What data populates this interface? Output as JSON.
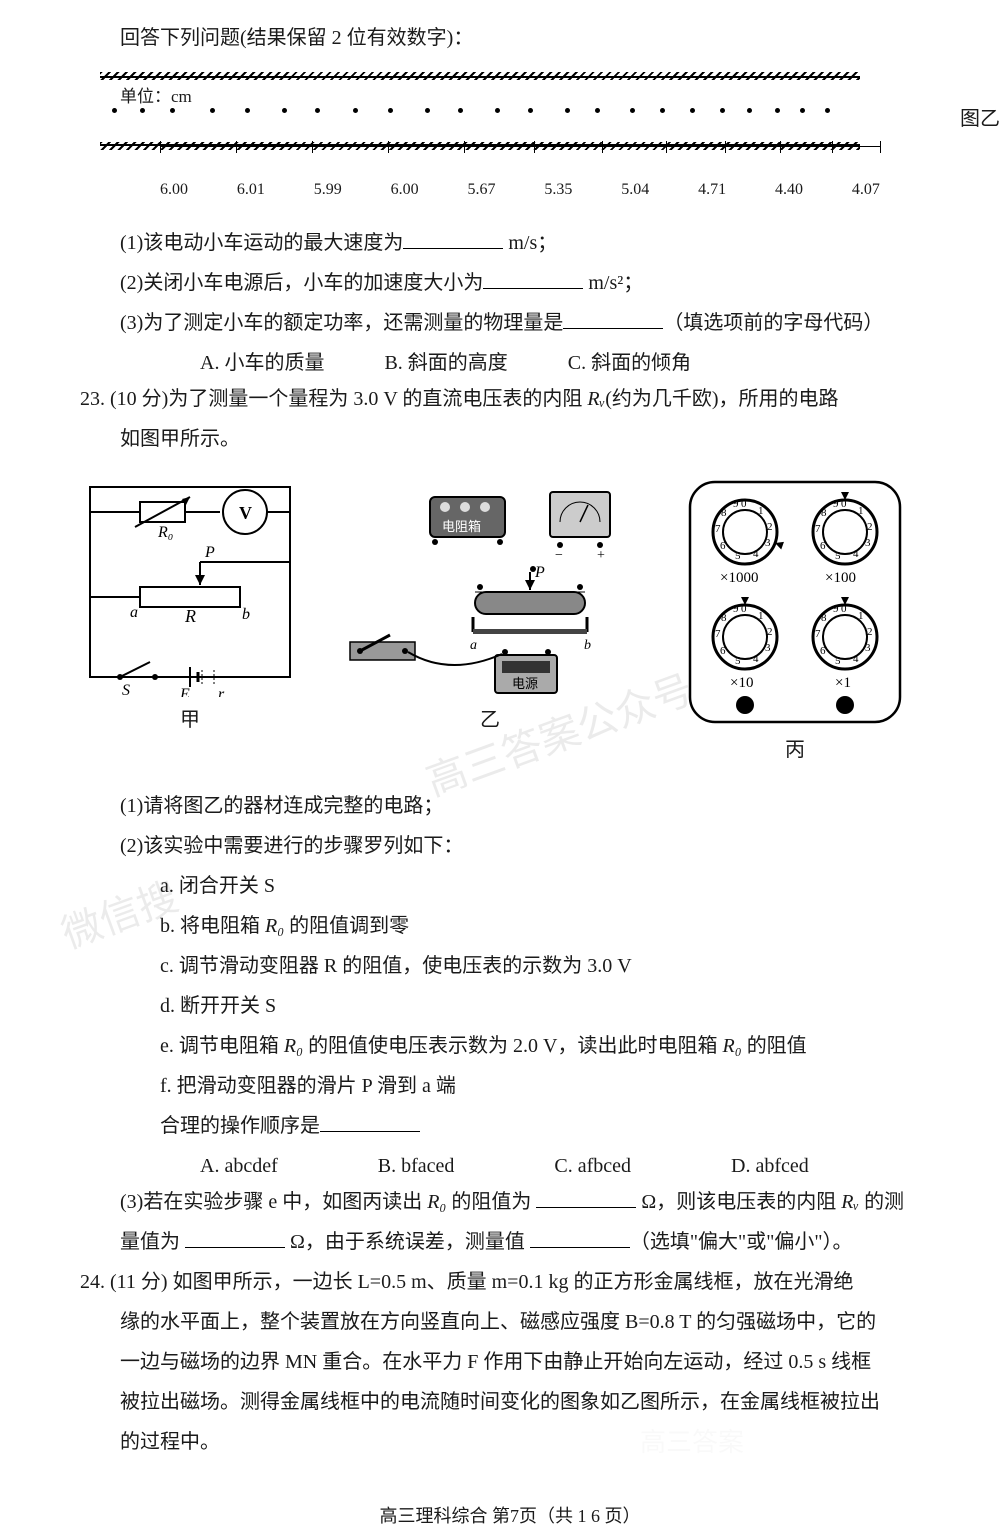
{
  "header_line": "回答下列问题(结果保留 2 位有效数字)：",
  "tape": {
    "unit_label": "单位：cm",
    "values": [
      "6.00",
      "6.01",
      "5.99",
      "6.00",
      "5.67",
      "5.35",
      "5.04",
      "4.71",
      "4.40",
      "4.07"
    ],
    "right_label": "图乙",
    "dot_positions": [
      12,
      40,
      70,
      110,
      145,
      182,
      215,
      253,
      288,
      325,
      358,
      395,
      428,
      465,
      495,
      530,
      560,
      590,
      620,
      647,
      675,
      700,
      725
    ],
    "tick_positions": [
      0,
      76,
      152,
      228,
      304,
      374,
      442,
      506,
      565,
      620,
      672,
      720
    ]
  },
  "q1_1": "(1)该电动小车运动的最大速度为",
  "q1_1_unit": " m/s；",
  "q1_2": "(2)关闭小车电源后，小车的加速度大小为",
  "q1_2_unit": " m/s²；",
  "q1_3": "(3)为了测定小车的额定功率，还需测量的物理量是",
  "q1_3_unit": "（填选项前的字母代码）",
  "q1_options": {
    "a": "A. 小车的质量",
    "b": "B. 斜面的高度",
    "c": "C. 斜面的倾角"
  },
  "q23_num": "23. ",
  "q23_text1": "(10 分)为了测量一个量程为 3.0 V 的直流电压表的内阻 ",
  "q23_rv": "Rᵥ",
  "q23_text2": "(约为几千欧)，所用的电路",
  "q23_text3": "如图甲所示。",
  "circuit_labels": {
    "jia": "甲",
    "yi": "乙",
    "bing": "丙"
  },
  "circuit_jia": {
    "R0": "R₀",
    "V": "V",
    "P": "P",
    "a": "a",
    "b": "b",
    "R": "R",
    "S": "S",
    "E": "E",
    "r": "r"
  },
  "circuit_yi": {
    "box": "电阻箱",
    "power": "电源",
    "P": "P",
    "a": "a",
    "b": "b"
  },
  "circuit_bing": {
    "m1000": "×1000",
    "m100": "×100",
    "m10": "×10",
    "m1": "×1"
  },
  "q23_1": "(1)请将图乙的器材连成完整的电路；",
  "q23_2": "(2)该实验中需要进行的步骤罗列如下：",
  "steps": {
    "a": "a. 闭合开关 S",
    "b_1": "b. 将电阻箱 ",
    "b_r0": "R₀",
    "b_2": " 的阻值调到零",
    "c": "c. 调节滑动变阻器 R 的阻值，使电压表的示数为 3.0 V",
    "d": "d. 断开开关 S",
    "e_1": "e. 调节电阻箱 ",
    "e_2": " 的阻值使电压表示数为 2.0 V，读出此时电阻箱 ",
    "e_3": " 的阻值",
    "f": "f. 把滑动变阻器的滑片 P 滑到 a 端"
  },
  "order_label": "合理的操作顺序是",
  "order_options": {
    "a": "A. abcdef",
    "b": "B. bfaced",
    "c": "C. afbced",
    "d": "D. abfced"
  },
  "q23_3_1": "(3)若在实验步骤 e 中，如图丙读出 ",
  "q23_3_2": " 的阻值为 ",
  "q23_3_unit1": " Ω，则该电压表的内阻 ",
  "q23_3_3": " 的测",
  "q23_3_4": "量值为 ",
  "q23_3_unit2": " Ω，由于系统误差，测量值 ",
  "q23_3_5": "（选填\"偏大\"或\"偏小\"）。",
  "q24_num": "24. ",
  "q24_l1": "(11 分) 如图甲所示，一边长 L=0.5 m、质量 m=0.1 kg 的正方形金属线框，放在光滑绝",
  "q24_l2": "缘的水平面上，整个装置放在方向竖直向上、磁感应强度 B=0.8 T 的匀强磁场中，它的",
  "q24_l3": "一边与磁场的边界 MN 重合。在水平力 F 作用下由静止开始向左运动，经过 0.5 s 线框",
  "q24_l4": "被拉出磁场。测得金属线框中的电流随时间变化的图象如乙图所示，在金属线框被拉出",
  "q24_l5": "的过程中。",
  "footer": "高三理科综合  第7页（共 1 6  页）",
  "watermarks": {
    "w1": "微信搜",
    "w2": "高三答案公众号",
    "w3": "高三答案"
  },
  "colors": {
    "text": "#1a1a1a",
    "bg": "#ffffff",
    "line": "#000000"
  }
}
